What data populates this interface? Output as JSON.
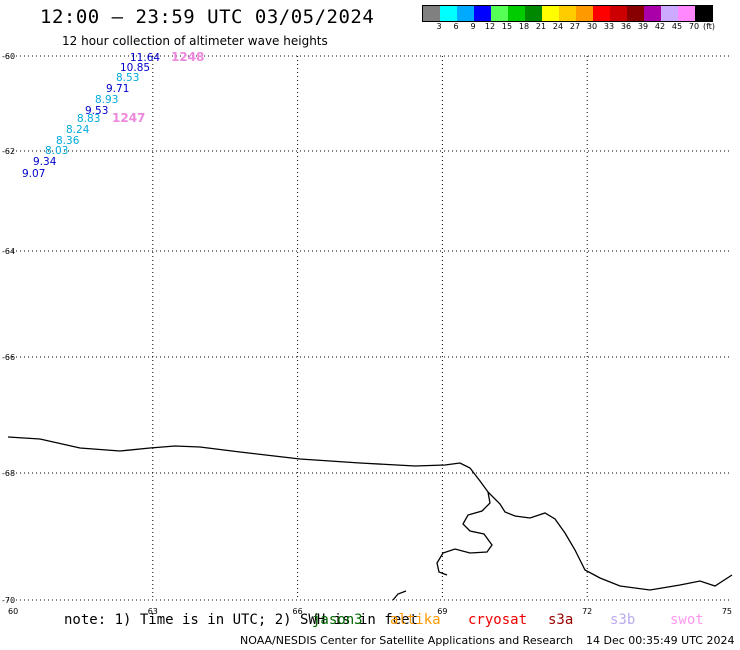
{
  "header": {
    "title": "12:00 – 23:59 UTC 03/05/2024",
    "subtitle": "12 hour collection of altimeter wave heights"
  },
  "legend": {
    "unit": "(ft)",
    "bins": [
      {
        "label": "3",
        "color": "#808080"
      },
      {
        "label": "6",
        "color": "#00ffff"
      },
      {
        "label": "9",
        "color": "#00aaff"
      },
      {
        "label": "12",
        "color": "#0000ff"
      },
      {
        "label": "15",
        "color": "#55ff55"
      },
      {
        "label": "18",
        "color": "#00cc00"
      },
      {
        "label": "21",
        "color": "#008800"
      },
      {
        "label": "24",
        "color": "#ffff00"
      },
      {
        "label": "27",
        "color": "#ffcc00"
      },
      {
        "label": "30",
        "color": "#ff9900"
      },
      {
        "label": "33",
        "color": "#ff0000"
      },
      {
        "label": "36",
        "color": "#cc0000"
      },
      {
        "label": "39",
        "color": "#880000"
      },
      {
        "label": "42",
        "color": "#aa00aa"
      },
      {
        "label": "45",
        "color": "#ccaaff"
      },
      {
        "label": "70",
        "color": "#ff88ff"
      },
      {
        "label": "",
        "color": "#000000"
      }
    ]
  },
  "map": {
    "lat_ticks": [
      {
        "label": "-60",
        "lat": -60
      },
      {
        "label": "-62",
        "lat": -62
      },
      {
        "label": "-64",
        "lat": -64
      },
      {
        "label": "-66",
        "lat": -66
      },
      {
        "label": "-68",
        "lat": -68
      },
      {
        "label": "-70",
        "lat": -70
      }
    ],
    "lon_ticks": [
      {
        "label": "60",
        "lon": 60
      },
      {
        "label": "63",
        "lon": 63
      },
      {
        "label": "66",
        "lon": 66
      },
      {
        "label": "69",
        "lon": 69
      },
      {
        "label": "72",
        "lon": 72
      },
      {
        "label": "75",
        "lon": 75
      }
    ],
    "observations": [
      {
        "value": "11.64",
        "color": "#0000cc"
      },
      {
        "value": "10.85",
        "color": "#0000cc"
      },
      {
        "value": "8.53",
        "color": "#00aadd"
      },
      {
        "value": "9.71",
        "color": "#0000cc"
      },
      {
        "value": "8.93",
        "color": "#00aadd"
      },
      {
        "value": "9.53",
        "color": "#0000cc"
      },
      {
        "value": "8.83",
        "color": "#00aadd"
      },
      {
        "value": "8.24",
        "color": "#00aadd"
      },
      {
        "value": "8.36",
        "color": "#00aadd"
      },
      {
        "value": "8.03",
        "color": "#00aadd"
      },
      {
        "value": "9.34",
        "color": "#0000cc"
      },
      {
        "value": "9.07",
        "color": "#0000cc"
      }
    ],
    "pass_labels": [
      {
        "text": "1248",
        "color": "#ee88dd"
      },
      {
        "text": "1247",
        "color": "#ee88dd"
      }
    ]
  },
  "footer": {
    "note": "note: 1) Time is in UTC; 2) SWH is in feet",
    "missions": [
      {
        "name": "jason3",
        "color": "#006600"
      },
      {
        "name": "altika",
        "color": "#ff9900"
      },
      {
        "name": "cryosat",
        "color": "#ee0000"
      },
      {
        "name": "s3a",
        "color": "#990000"
      },
      {
        "name": "s3b",
        "color": "#bbaaee"
      },
      {
        "name": "swot",
        "color": "#ff99ee"
      }
    ],
    "credit": "NOAA/NESDIS Center for Satellite Applications and Research",
    "timestamp": "14 Dec 00:35:49 UTC 2024"
  }
}
